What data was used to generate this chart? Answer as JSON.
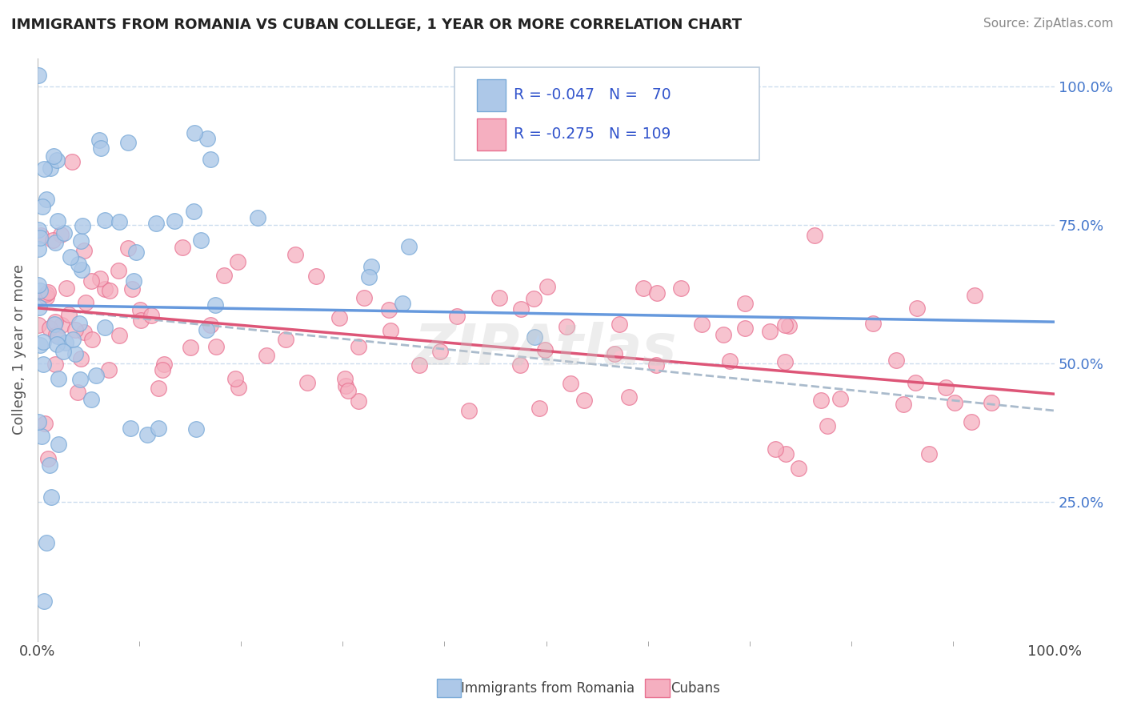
{
  "title": "IMMIGRANTS FROM ROMANIA VS CUBAN COLLEGE, 1 YEAR OR MORE CORRELATION CHART",
  "source": "Source: ZipAtlas.com",
  "ylabel": "College, 1 year or more",
  "right_ytick_labels": [
    "25.0%",
    "50.0%",
    "75.0%",
    "100.0%"
  ],
  "right_ytick_values": [
    0.25,
    0.5,
    0.75,
    1.0
  ],
  "xlim": [
    0.0,
    1.0
  ],
  "ylim": [
    0.0,
    1.05
  ],
  "romania_color": "#adc8e8",
  "cuba_color": "#f5afc0",
  "romania_edge_color": "#7aaad8",
  "cuba_edge_color": "#e87090",
  "romania_line_color": "#6699dd",
  "cuba_line_color": "#dd5577",
  "dash_line_color": "#aabbcc",
  "watermark": "ZIPAtlas",
  "legend_text_color": "#3355cc",
  "background_color": "#ffffff",
  "grid_color": "#ccddee",
  "title_fontsize": 13,
  "right_label_color": "#4477cc",
  "romania_N": 70,
  "cuba_N": 109,
  "romania_line_x0": 0.0,
  "romania_line_y0": 0.605,
  "romania_line_x1": 1.0,
  "romania_line_y1": 0.575,
  "cuba_line_x0": 0.0,
  "cuba_line_y0": 0.6,
  "cuba_line_x1": 1.0,
  "cuba_line_y1": 0.445,
  "dash_line_x0": 0.0,
  "dash_line_y0": 0.6,
  "dash_line_x1": 1.0,
  "dash_line_y1": 0.415
}
